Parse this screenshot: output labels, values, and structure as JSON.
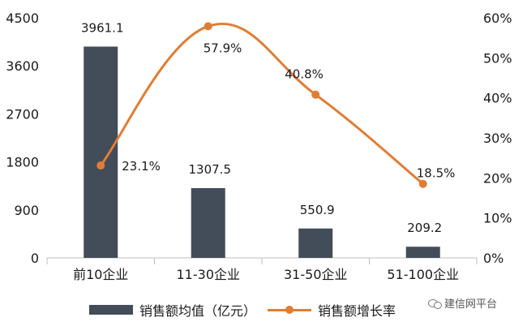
{
  "chart_data": {
    "type": "bar",
    "categories": [
      "前10企业",
      "11-30企业",
      "31-50企业",
      "51-100企业"
    ],
    "series": [
      {
        "name": "销售额均值（亿元）",
        "type": "bar",
        "axis": "left",
        "values": [
          3961.1,
          1307.5,
          550.9,
          209.2
        ],
        "color": "#434c59"
      },
      {
        "name": "销售额增长率",
        "type": "line",
        "axis": "right",
        "values": [
          23.1,
          57.9,
          40.8,
          18.5
        ],
        "color": "#e07d35"
      }
    ],
    "data_labels": {
      "bar": [
        "3961.1",
        "1307.5",
        "550.9",
        "209.2"
      ],
      "line": [
        "23.1%",
        "57.9%",
        "40.8%",
        "18.5%"
      ]
    },
    "y_left": {
      "ylim": [
        0,
        4500
      ],
      "ticks": [
        "0",
        "900",
        "1800",
        "2700",
        "3600",
        "4500"
      ]
    },
    "y_right": {
      "ylim": [
        0,
        60
      ],
      "ticks": [
        "0%",
        "10%",
        "20%",
        "30%",
        "40%",
        "50%",
        "60%"
      ]
    },
    "legend_position": "bottom",
    "grid": false
  },
  "watermark": "建信网平台"
}
